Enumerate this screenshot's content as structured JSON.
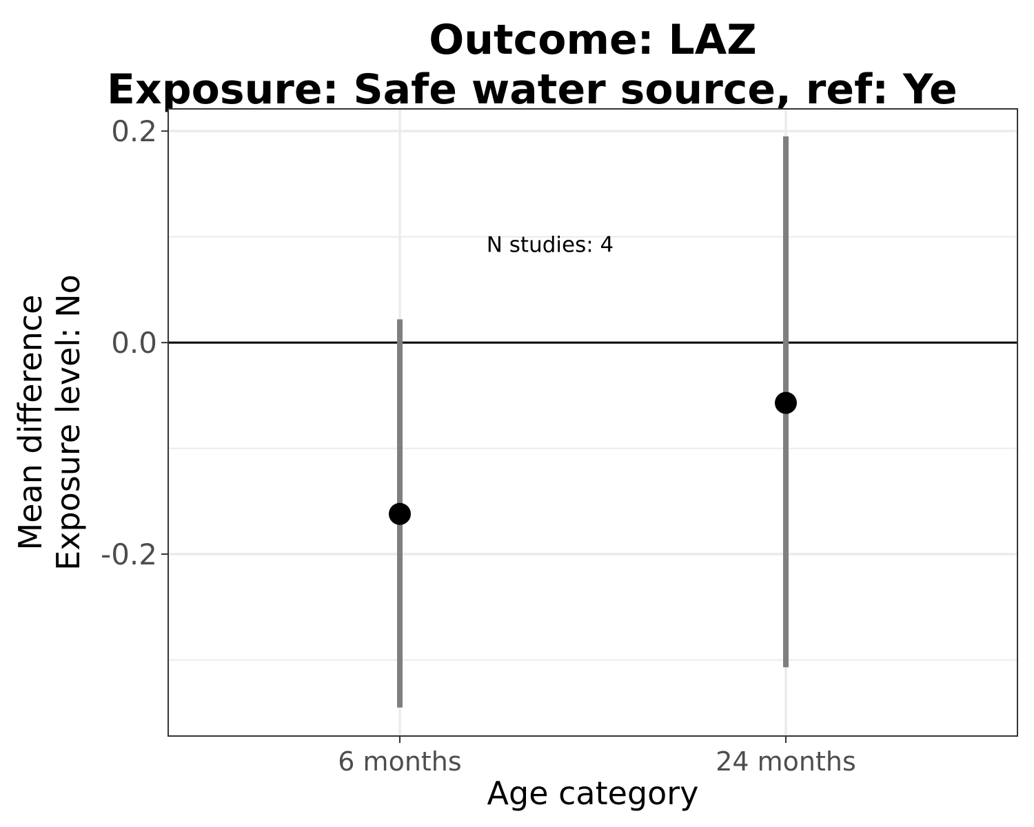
{
  "chart_data": {
    "type": "scatter",
    "title": "Outcome: LAZ",
    "subtitle": "Exposure: Safe water source, ref: Ye",
    "xlabel": "Age category",
    "ylabel": [
      "Mean difference",
      "Exposure level: No"
    ],
    "categories": [
      "6 months",
      "24 months"
    ],
    "points": [
      {
        "category": "6 months",
        "estimate": -0.162,
        "ci_lower": -0.345,
        "ci_upper": 0.022
      },
      {
        "category": "24 months",
        "estimate": -0.057,
        "ci_lower": -0.307,
        "ci_upper": 0.195
      }
    ],
    "yticks": [
      0.2,
      0.0,
      -0.2
    ],
    "ytick_labels": [
      "0.2",
      "0.0",
      "-0.2"
    ],
    "ylim": [
      -0.372,
      0.221
    ],
    "reference_line": 0.0,
    "annotation": {
      "text": "N studies: 4",
      "category": "6 months",
      "y": 0.093
    },
    "grid": true,
    "colors": {
      "point": "#000000",
      "ci": "#7f7f7f",
      "grid": "#ebebeb",
      "reference": "#000000"
    }
  }
}
